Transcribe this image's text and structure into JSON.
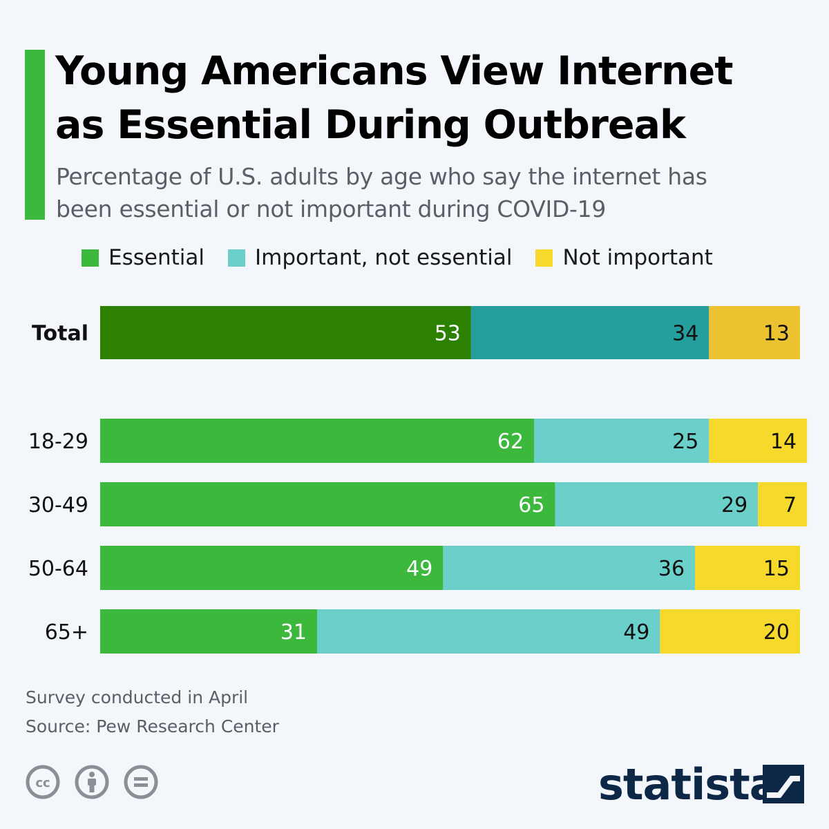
{
  "header": {
    "title_line1": "Young Americans View Internet",
    "title_line2": "as Essential During Outbreak",
    "subtitle_line1": "Percentage of U.S. adults by age who say the internet has",
    "subtitle_line2": "been essential or not important during COVID-19",
    "accent_color": "#3cb83c"
  },
  "legend": {
    "items": [
      {
        "label": "Essential",
        "color": "#3cb83c"
      },
      {
        "label": "Important, not essential",
        "color": "#6bcfca"
      },
      {
        "label": "Not important",
        "color": "#f7d92b"
      }
    ]
  },
  "chart_data": {
    "type": "bar",
    "orientation": "horizontal",
    "stacked": true,
    "title": "Young Americans View Internet as Essential During Outbreak",
    "subtitle": "Percentage of U.S. adults by age who say the internet has been essential or not important during COVID-19",
    "xlabel": "",
    "ylabel": "",
    "xlim": [
      0,
      100
    ],
    "grid": false,
    "legend_position": "top",
    "categories": [
      "Total",
      "18-29",
      "30-49",
      "50-64",
      "65+"
    ],
    "series": [
      {
        "name": "Essential",
        "values": [
          53,
          62,
          65,
          49,
          31
        ],
        "color": "#3cb83c",
        "highlight_color": "#2c8200"
      },
      {
        "name": "Important, not essential",
        "values": [
          34,
          25,
          29,
          36,
          49
        ],
        "color": "#6bcfca",
        "highlight_color": "#259e9e"
      },
      {
        "name": "Not important",
        "values": [
          13,
          14,
          7,
          15,
          20
        ],
        "color": "#f7d92b",
        "highlight_color": "#ebc22f"
      }
    ],
    "highlighted_category": "Total"
  },
  "footer": {
    "note": "Survey conducted in April",
    "source": "Source: Pew Research Center",
    "license_icons": [
      "cc-icon",
      "attribution-icon",
      "no-derivatives-icon"
    ],
    "brand_name": "statista",
    "brand_color": "#0d2747"
  }
}
